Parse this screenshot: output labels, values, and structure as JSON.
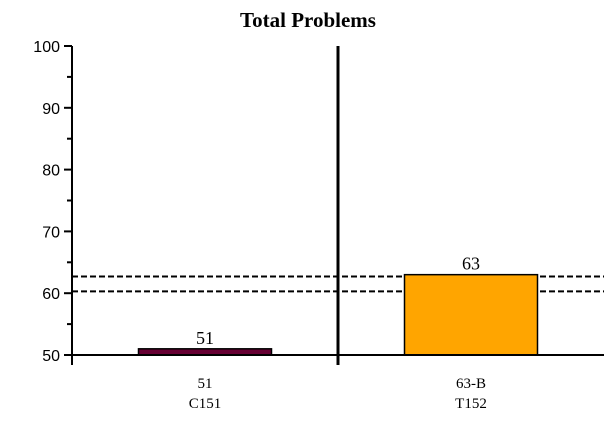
{
  "chart_data": {
    "type": "bar",
    "title": "Total Problems",
    "xlabel": "",
    "ylabel": "",
    "ylim": [
      50,
      100
    ],
    "yticks": [
      50,
      60,
      70,
      80,
      90,
      100
    ],
    "grid": false,
    "categories": [
      {
        "line1": "51",
        "line2": "C151"
      },
      {
        "line1": "63-B",
        "line2": "T152"
      }
    ],
    "values": [
      51,
      63
    ],
    "data_labels": [
      "51",
      "63"
    ],
    "bar_colors": [
      "#660033",
      "#FFA500"
    ],
    "reference_lines": [
      60.3,
      62.7
    ],
    "reference_line_style": "dashed"
  }
}
